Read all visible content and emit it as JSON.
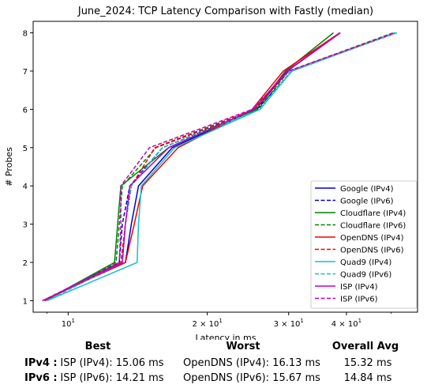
{
  "chart_data": {
    "type": "line",
    "title": "June_2024: TCP Latency Comparison with Fastly (median)",
    "xlabel": "Latency in ms",
    "ylabel": "# Probes",
    "xscale": "log",
    "xlim": [
      8.4,
      57
    ],
    "ylim": [
      0.7,
      8.3
    ],
    "xticks": [
      {
        "value": 10,
        "base": "10",
        "exp": "1"
      },
      {
        "value": 20,
        "base": "2 × 10",
        "exp": "1"
      },
      {
        "value": 30,
        "base": "3 × 10",
        "exp": "1"
      },
      {
        "value": 40,
        "base": "4 × 10",
        "exp": "1"
      }
    ],
    "yticks": [
      1,
      2,
      3,
      4,
      5,
      6,
      7,
      8
    ],
    "grid": false,
    "legend_position": "lower-right",
    "series": [
      {
        "name": "Google (IPv4)",
        "color": "#0000cc",
        "dash": "solid",
        "x": [
          8.8,
          13.3,
          13.7,
          14.2,
          16.8,
          25.5,
          29.8,
          38.8
        ],
        "y": [
          1,
          2,
          3,
          4,
          5,
          6,
          7,
          8
        ]
      },
      {
        "name": "Google (IPv6)",
        "color": "#0000cc",
        "dash": "dashed",
        "x": [
          8.9,
          12.9,
          13.1,
          13.6,
          16.0,
          25.6,
          30.5,
          51.0
        ],
        "y": [
          1,
          2,
          3,
          4,
          5,
          6,
          7,
          8
        ]
      },
      {
        "name": "Cloudflare (IPv4)",
        "color": "#008000",
        "dash": "solid",
        "x": [
          8.9,
          12.6,
          12.8,
          13.0,
          16.5,
          25.5,
          29.5,
          37.5
        ],
        "y": [
          1,
          2,
          3,
          4,
          5,
          6,
          7,
          8
        ]
      },
      {
        "name": "Cloudflare (IPv6)",
        "color": "#008000",
        "dash": "dashed",
        "x": [
          8.9,
          12.7,
          12.9,
          13.1,
          15.5,
          25.8,
          30.0,
          50.5
        ],
        "y": [
          1,
          2,
          3,
          4,
          5,
          6,
          7,
          8
        ]
      },
      {
        "name": "OpenDNS (IPv4)",
        "color": "#ee0000",
        "dash": "solid",
        "x": [
          8.8,
          13.3,
          13.9,
          14.5,
          17.3,
          25.0,
          29.2,
          38.7
        ],
        "y": [
          1,
          2,
          3,
          4,
          5,
          6,
          7,
          8
        ]
      },
      {
        "name": "OpenDNS (IPv6)",
        "color": "#ee0000",
        "dash": "dashed",
        "x": [
          8.9,
          13.0,
          13.3,
          13.7,
          15.4,
          25.3,
          30.0,
          51.0
        ],
        "y": [
          1,
          2,
          3,
          4,
          5,
          6,
          7,
          8
        ]
      },
      {
        "name": "Quad9 (IPv4)",
        "color": "#17becf",
        "dash": "solid",
        "x": [
          9.0,
          14.1,
          14.2,
          14.4,
          17.0,
          26.0,
          30.5,
          51.0
        ],
        "y": [
          1,
          2,
          3,
          4,
          5,
          6,
          7,
          8
        ]
      },
      {
        "name": "Quad9 (IPv6)",
        "color": "#17becf",
        "dash": "dashed",
        "x": [
          9.0,
          13.1,
          13.3,
          13.7,
          16.0,
          26.0,
          30.3,
          51.5
        ],
        "y": [
          1,
          2,
          3,
          4,
          5,
          6,
          7,
          8
        ]
      },
      {
        "name": "ISP (IPv4)",
        "color": "#bf00bf",
        "dash": "solid",
        "x": [
          8.8,
          13.1,
          13.3,
          13.6,
          16.5,
          25.2,
          29.7,
          38.8
        ],
        "y": [
          1,
          2,
          3,
          4,
          5,
          6,
          7,
          8
        ]
      },
      {
        "name": "ISP (IPv6)",
        "color": "#bf00bf",
        "dash": "dashed",
        "x": [
          8.8,
          12.9,
          13.0,
          13.0,
          15.0,
          25.0,
          30.0,
          51.0
        ],
        "y": [
          1,
          2,
          3,
          4,
          5,
          6,
          7,
          8
        ]
      }
    ]
  },
  "summary": {
    "headers": {
      "best": "Best",
      "worst": "Worst",
      "avg": "Overall Avg"
    },
    "rows": [
      {
        "label": "IPv4 :",
        "best": "ISP (IPv4): 15.06 ms",
        "worst": "OpenDNS (IPv4): 16.13 ms",
        "avg": "15.32 ms"
      },
      {
        "label": "IPv6 :",
        "best": "ISP (IPv6): 14.21 ms",
        "worst": "OpenDNS (IPv6): 15.67 ms",
        "avg": "14.84 ms"
      }
    ]
  }
}
